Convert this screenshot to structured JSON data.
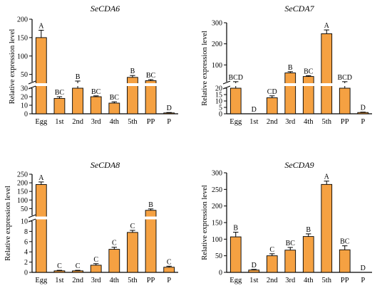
{
  "chart_data": [
    {
      "type": "bar",
      "title": "SeCDA6",
      "ylabel": "Relative expression level",
      "categories": [
        "Egg",
        "1st",
        "2nd",
        "3rd",
        "4th",
        "5th",
        "PP",
        "P"
      ],
      "values": [
        150,
        18,
        30,
        20,
        12.5,
        42,
        33,
        1
      ],
      "errors": [
        20,
        2,
        2,
        1,
        1.5,
        5,
        3,
        0.5
      ],
      "letters": [
        "A",
        "BC",
        "B",
        "BC",
        "BC",
        "B",
        "BC",
        "D"
      ],
      "axis_break": {
        "lower": [
          0,
          30
        ],
        "upper": [
          30,
          200
        ]
      },
      "yticks_lower": [
        0,
        10,
        20,
        30
      ],
      "yticks_upper": [
        50,
        100,
        150,
        200
      ],
      "bar_color": "#F5A142"
    },
    {
      "type": "bar",
      "title": "SeCDA7",
      "ylabel": "Relative expression level",
      "categories": [
        "Egg",
        "1st",
        "2nd",
        "3rd",
        "4th",
        "5th",
        "PP",
        "P"
      ],
      "values": [
        20,
        0,
        12.5,
        62,
        45,
        248,
        20,
        1
      ],
      "errors": [
        0.5,
        0,
        1.5,
        6,
        4,
        18,
        0.5,
        0.3
      ],
      "letters": [
        "BCD",
        "D",
        "CD",
        "B",
        "BC",
        "A",
        "BCD",
        "D"
      ],
      "axis_break": {
        "lower": [
          0,
          20
        ],
        "upper": [
          20,
          300
        ]
      },
      "yticks_lower": [
        0,
        5,
        10,
        15,
        20
      ],
      "yticks_upper": [
        100,
        200,
        300
      ],
      "bar_color": "#F5A142"
    },
    {
      "type": "bar",
      "title": "SeCDA8",
      "ylabel": "Relative expression level",
      "categories": [
        "Egg",
        "1st",
        "2nd",
        "3rd",
        "4th",
        "5th",
        "PP",
        "P"
      ],
      "values": [
        190,
        0.3,
        0.3,
        1.4,
        4.5,
        7.8,
        40,
        1
      ],
      "errors": [
        15,
        0.1,
        0.1,
        0.3,
        0.4,
        0.4,
        8,
        0.2
      ],
      "letters": [
        "A",
        "C",
        "C",
        "C",
        "C",
        "C",
        "B",
        "C"
      ],
      "axis_break": {
        "lower": [
          0,
          10
        ],
        "upper": [
          10,
          250
        ]
      },
      "yticks_lower": [
        0,
        2,
        4,
        6,
        8,
        10
      ],
      "yticks_upper": [
        50,
        100,
        150,
        200,
        250
      ],
      "bar_color": "#F5A142"
    },
    {
      "type": "bar",
      "title": "SeCDA9",
      "ylabel": "Relative expression level",
      "categories": [
        "Egg",
        "1st",
        "2nd",
        "3rd",
        "4th",
        "5th",
        "PP",
        "P"
      ],
      "values": [
        107,
        7,
        50,
        67,
        108,
        265,
        68,
        0
      ],
      "errors": [
        14,
        2,
        6,
        8,
        8,
        10,
        12,
        0
      ],
      "letters": [
        "B",
        "D",
        "C",
        "BC",
        "B",
        "A",
        "BC",
        "D"
      ],
      "ylim": [
        0,
        300
      ],
      "yticks": [
        0,
        50,
        100,
        150,
        200,
        250,
        300
      ],
      "bar_color": "#F5A142"
    }
  ]
}
